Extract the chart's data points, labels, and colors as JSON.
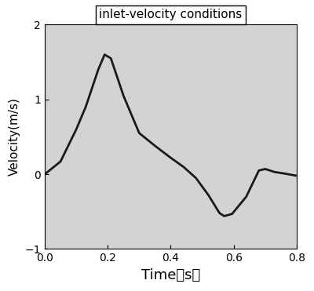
{
  "title": "inlet-velocity conditions",
  "xlabel": "Time（s）",
  "ylabel": "Velocity(m/s)",
  "xlim": [
    0.0,
    0.8
  ],
  "ylim": [
    -1.0,
    2.0
  ],
  "xticks": [
    0.0,
    0.2,
    0.4,
    0.6,
    0.8
  ],
  "yticks": [
    -1,
    0,
    1,
    2
  ],
  "background_color": "#d3d3d3",
  "fig_color": "#ffffff",
  "line_color": "#1a1a1a",
  "line_width": 2.0,
  "x": [
    0.0,
    0.05,
    0.1,
    0.13,
    0.17,
    0.19,
    0.21,
    0.25,
    0.3,
    0.35,
    0.4,
    0.44,
    0.48,
    0.52,
    0.555,
    0.57,
    0.595,
    0.64,
    0.68,
    0.7,
    0.73,
    0.76,
    0.8
  ],
  "y": [
    0.0,
    0.17,
    0.6,
    0.9,
    1.4,
    1.6,
    1.55,
    1.05,
    0.55,
    0.38,
    0.22,
    0.1,
    -0.05,
    -0.28,
    -0.52,
    -0.56,
    -0.53,
    -0.3,
    0.05,
    0.07,
    0.03,
    0.01,
    -0.02
  ],
  "title_fontsize": 11,
  "xlabel_fontsize": 13,
  "ylabel_fontsize": 11,
  "tick_labelsize": 10
}
